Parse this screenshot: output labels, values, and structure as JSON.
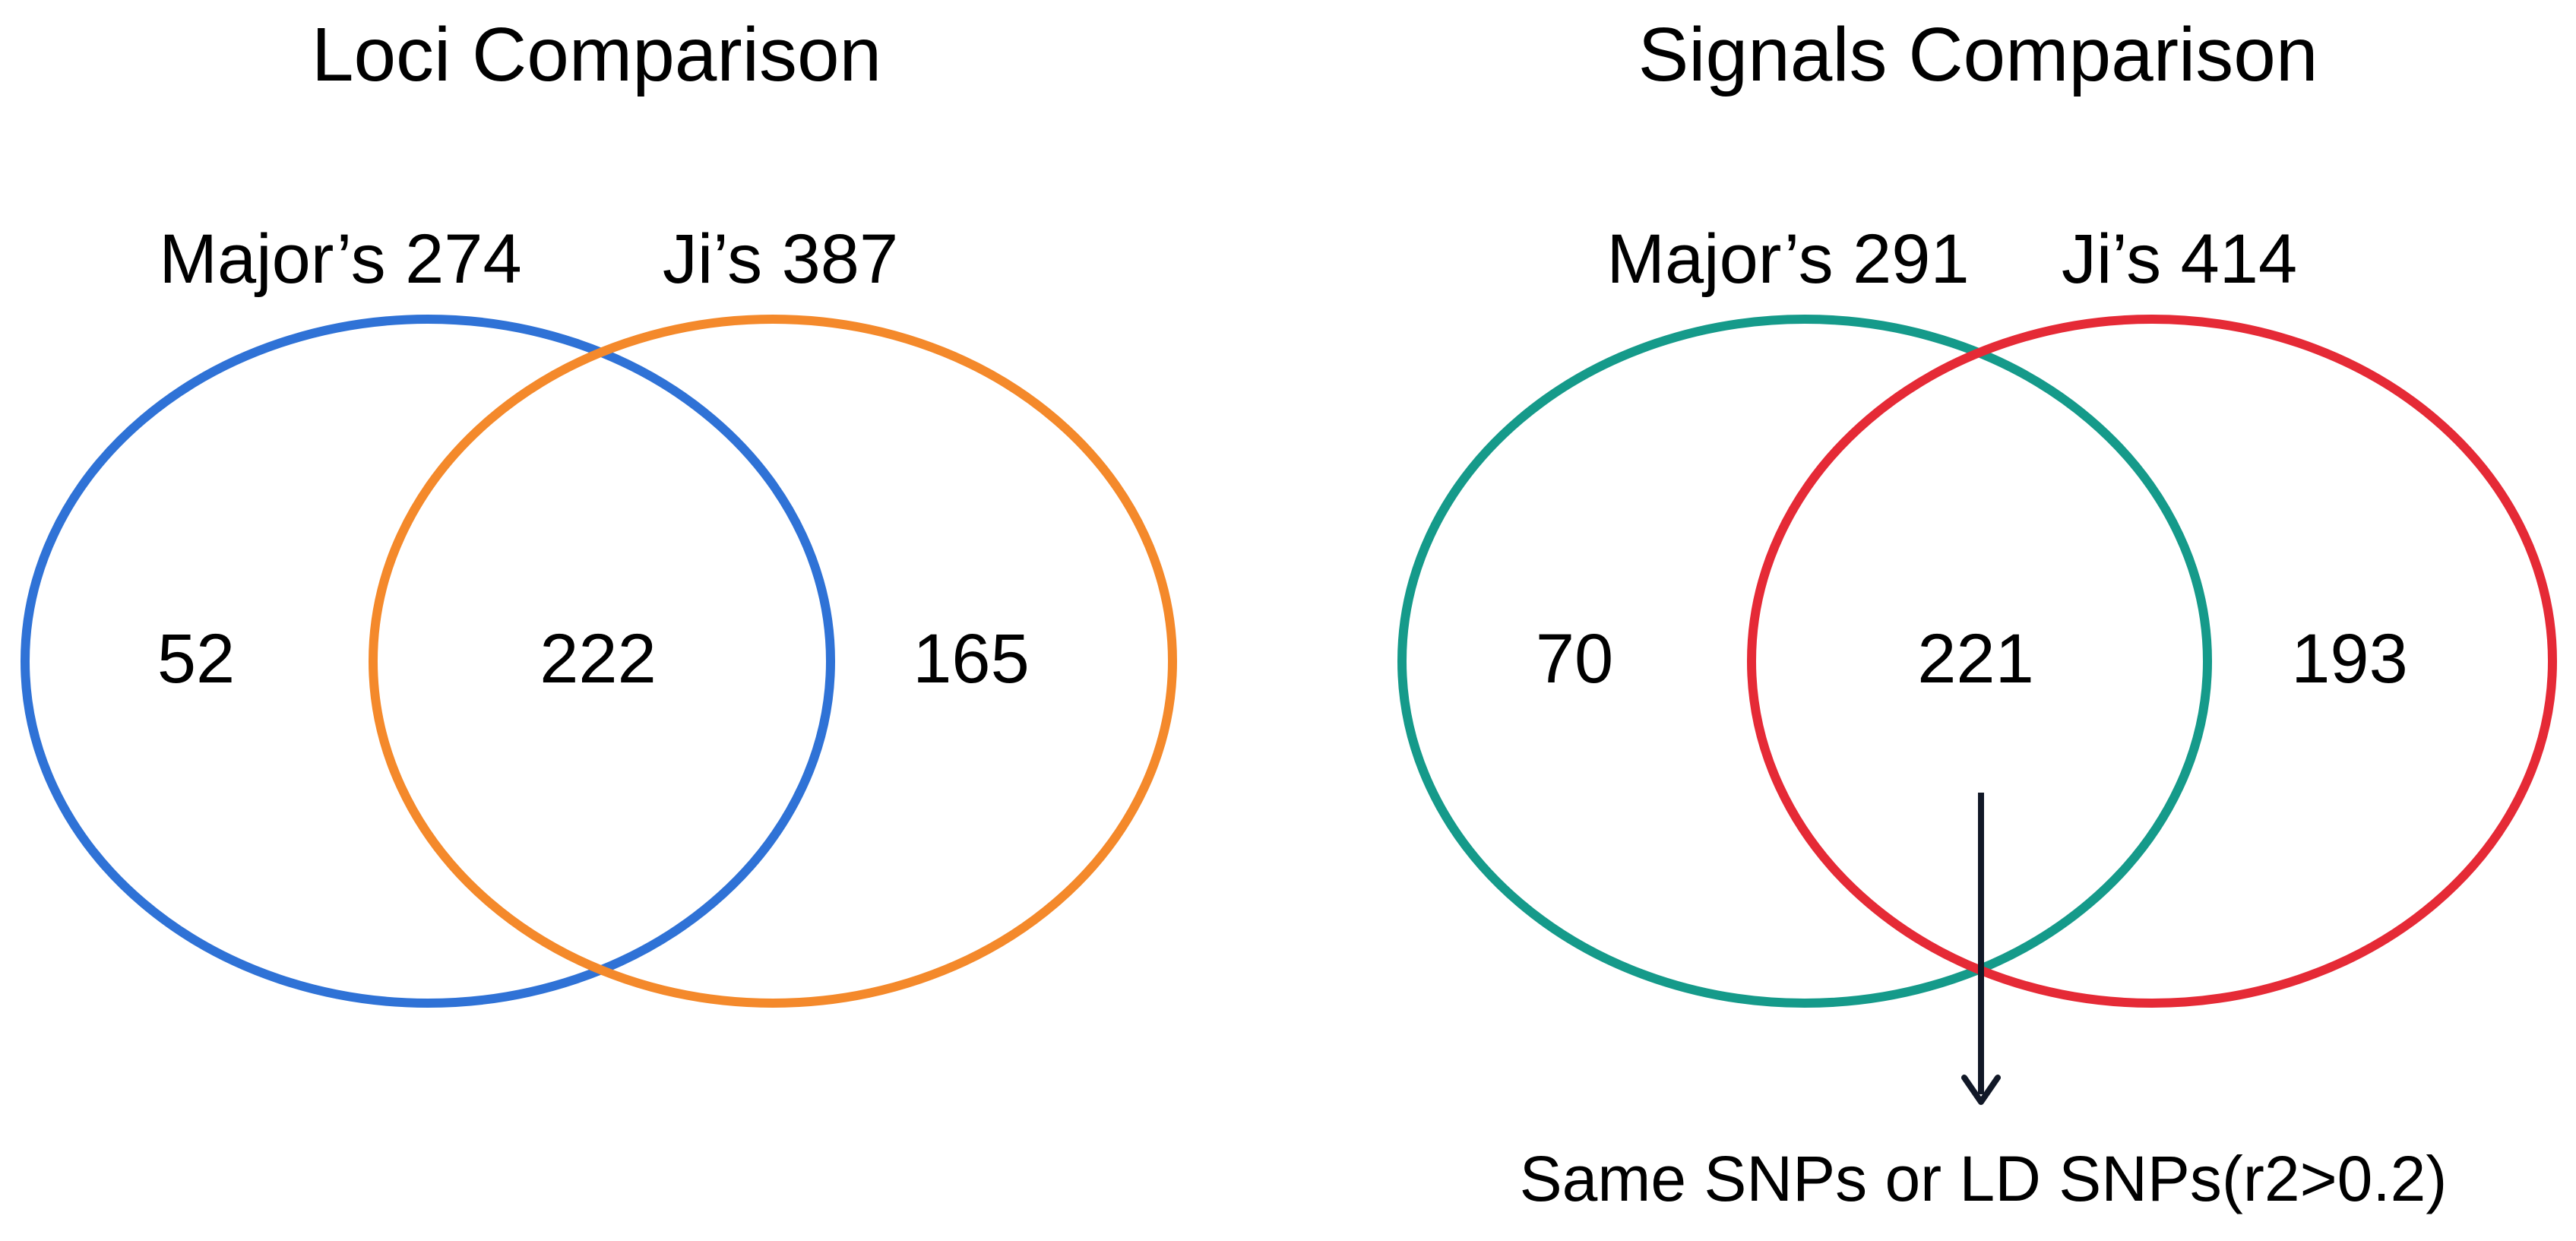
{
  "diagrams": [
    {
      "title": "Loci Comparison",
      "set_a": {
        "label": "Major’s 274",
        "color": "#2f72d6"
      },
      "set_b": {
        "label": "Ji’s 387",
        "color": "#f4892b"
      },
      "regions": {
        "only_a": "52",
        "both": "222",
        "only_b": "165"
      }
    },
    {
      "title": "Signals Comparison",
      "set_a": {
        "label": "Major’s 291",
        "color": "#159a8a"
      },
      "set_b": {
        "label": "Ji’s 414",
        "color": "#e52a36"
      },
      "regions": {
        "only_a": "70",
        "both": "221",
        "only_b": "193"
      },
      "annotation": {
        "text": "Same SNPs or LD SNPs(r2>0.2)",
        "arrow_color": "#111827"
      }
    }
  ]
}
